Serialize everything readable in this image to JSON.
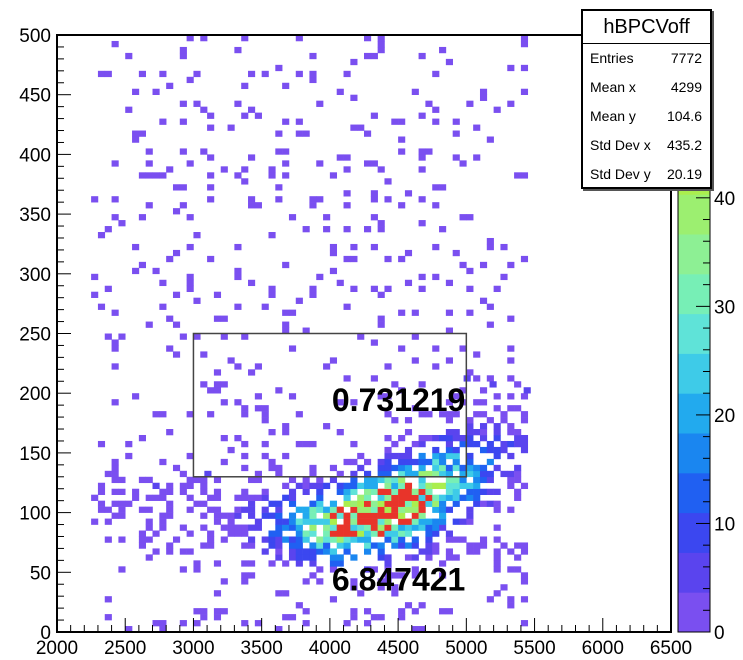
{
  "chart_data": {
    "type": "heatmap",
    "title": "",
    "xlabel": "",
    "ylabel": "",
    "xlim": [
      2000,
      6500
    ],
    "ylim": [
      0,
      500
    ],
    "x_ticks": [
      2000,
      2500,
      3000,
      3500,
      4000,
      4500,
      5000,
      5500,
      6000,
      6500
    ],
    "y_ticks": [
      0,
      50,
      100,
      150,
      200,
      250,
      300,
      350,
      400,
      450,
      500
    ],
    "zlim": [
      0,
      55
    ],
    "z_ticks": [
      0,
      10,
      20,
      30,
      40
    ],
    "palette": [
      "#7a4ff0",
      "#5a44ee",
      "#3b47f0",
      "#2060f2",
      "#1a86f0",
      "#22aaee",
      "#3ecbe8",
      "#5fe3d8",
      "#77efb6",
      "#8df094",
      "#9cef70",
      "#aaee4e",
      "#bfe836",
      "#dde62a",
      "#f1dc22"
    ],
    "stats": {
      "name": "hBPCVoff",
      "rows": [
        {
          "label": "Entries",
          "value": "7772"
        },
        {
          "label": "Mean x",
          "value": "4299"
        },
        {
          "label": "Mean y",
          "value": "104.6"
        },
        {
          "label": "Std Dev x",
          "value": "435.2"
        },
        {
          "label": "Std Dev y",
          "value": "20.19"
        }
      ]
    },
    "annotations": [
      {
        "text": "0.731219",
        "x": 4000,
        "y": 195
      },
      {
        "text": "6.847421",
        "x": 4000,
        "y": 45
      }
    ],
    "region_box": {
      "x0": 3000,
      "x1": 5000,
      "y0": 130,
      "y1": 250
    },
    "density": {
      "x_bin": 50,
      "y_bin": 5,
      "ridge": [
        [
          2300,
          112
        ],
        [
          3000,
          100
        ],
        [
          3500,
          88
        ],
        [
          4000,
          86
        ],
        [
          4500,
          103
        ],
        [
          5000,
          130
        ],
        [
          5400,
          150
        ]
      ],
      "peak": {
        "x": 4350,
        "y": 100,
        "z": 50
      },
      "spread_y": 22,
      "x_range": [
        2250,
        5420
      ],
      "outliers": [
        [
          5420,
          200
        ],
        [
          5170,
          205
        ],
        [
          4980,
          210
        ],
        [
          3080,
          130
        ],
        [
          2700,
          120
        ]
      ]
    }
  }
}
